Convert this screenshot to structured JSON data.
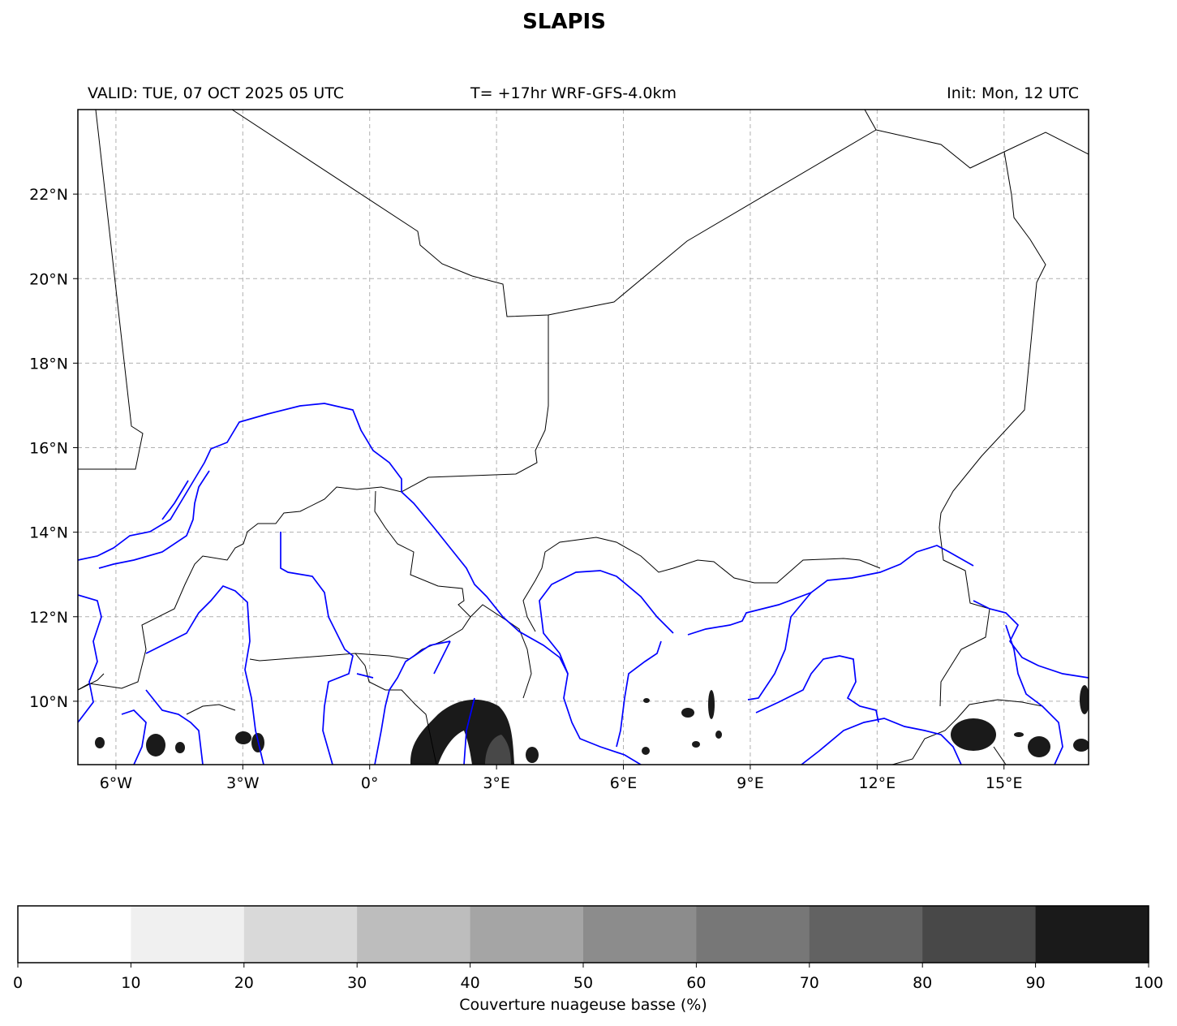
{
  "header": {
    "title": "SLAPIS",
    "valid": "VALID: TUE, 07 OCT 2025 05 UTC",
    "run": "T= +17hr WRF-GFS-4.0km",
    "init": "Init: Mon, 12 UTC"
  },
  "map": {
    "lon_range": [
      -6.9,
      17.0
    ],
    "lat_range": [
      8.5,
      24.0
    ],
    "lon_ticks": [
      {
        "value": -6,
        "label": "6°W"
      },
      {
        "value": -3,
        "label": "3°W"
      },
      {
        "value": 0,
        "label": "0°"
      },
      {
        "value": 3,
        "label": "3°E"
      },
      {
        "value": 6,
        "label": "6°E"
      },
      {
        "value": 9,
        "label": "9°E"
      },
      {
        "value": 12,
        "label": "12°E"
      },
      {
        "value": 15,
        "label": "15°E"
      }
    ],
    "lat_ticks": [
      {
        "value": 10,
        "label": "10°N"
      },
      {
        "value": 12,
        "label": "12°N"
      },
      {
        "value": 14,
        "label": "14°N"
      },
      {
        "value": 16,
        "label": "16°N"
      },
      {
        "value": 18,
        "label": "18°N"
      },
      {
        "value": 20,
        "label": "20°N"
      },
      {
        "value": 22,
        "label": "22°N"
      }
    ],
    "gridlines": true,
    "colors": {
      "borders": "#000000",
      "rivers": "#0000ff",
      "grid": "#b0b0b0"
    }
  },
  "colorbar": {
    "label": "Couverture nuageuse basse (%)",
    "ticks": [
      "0",
      "10",
      "20",
      "30",
      "40",
      "50",
      "60",
      "70",
      "80",
      "90",
      "100"
    ],
    "colors": [
      "#ffffff",
      "#f0f0f0",
      "#d9d9d9",
      "#bdbdbd",
      "#a5a5a5",
      "#8c8c8c",
      "#777777",
      "#626262",
      "#484848",
      "#1a1a1a"
    ]
  }
}
